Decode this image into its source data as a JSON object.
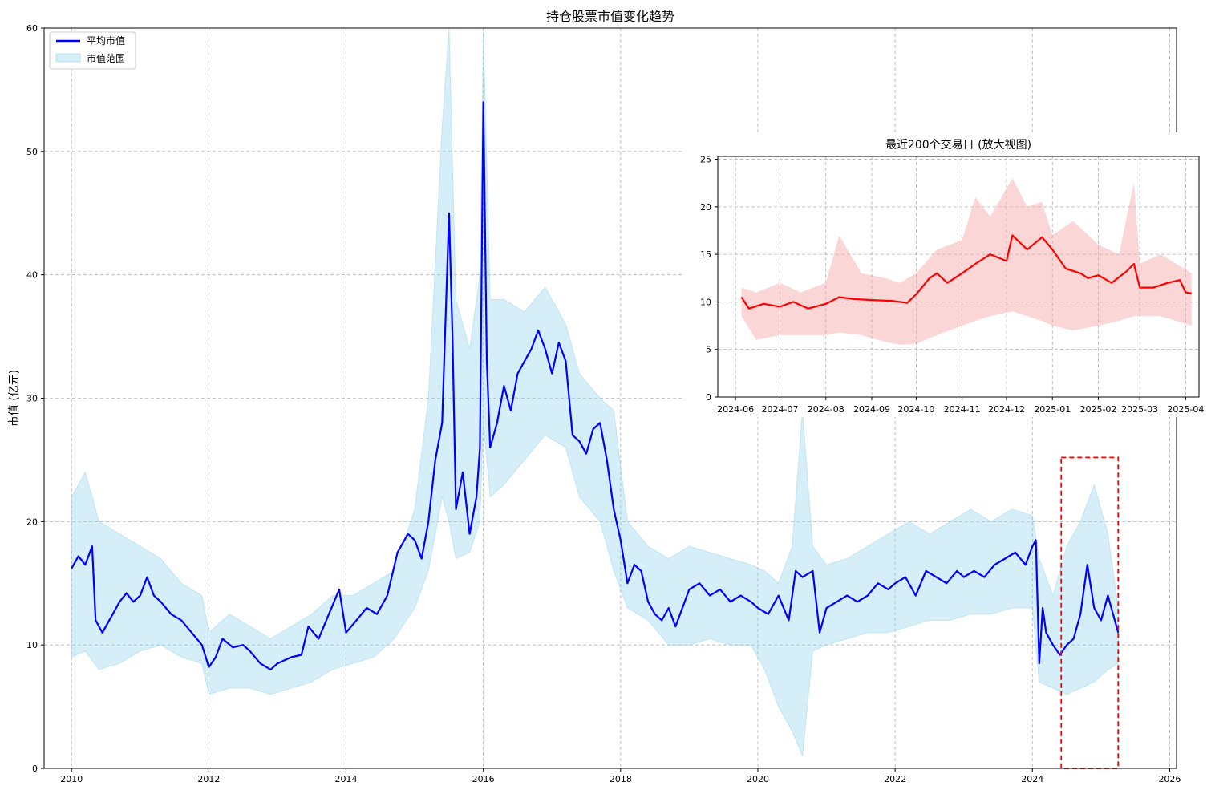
{
  "chart_data": [
    {
      "type": "line",
      "title": "持仓股票市值变化趋势",
      "ylabel": "市值 (亿元)",
      "xlabel": "",
      "xlim": [
        2009.6,
        2026.1
      ],
      "ylim": [
        0,
        60
      ],
      "xticks": [
        2010,
        2012,
        2014,
        2016,
        2018,
        2020,
        2022,
        2024,
        2026
      ],
      "xtick_labels": [
        "2010",
        "2012",
        "2014",
        "2016",
        "2018",
        "2020",
        "2022",
        "2024",
        "2026"
      ],
      "yticks": [
        0,
        10,
        20,
        30,
        40,
        50,
        60
      ],
      "ytick_labels": [
        "0",
        "10",
        "20",
        "30",
        "40",
        "50",
        "60"
      ],
      "grid": true,
      "legend": "top-left",
      "legend_entries": [
        "平均市值",
        "市值范围"
      ],
      "series": [
        {
          "name": "平均市值",
          "color": "#0000ff",
          "x": [
            2010.0,
            2010.1,
            2010.2,
            2010.3,
            2010.35,
            2010.45,
            2010.6,
            2010.7,
            2010.8,
            2010.9,
            2011.0,
            2011.1,
            2011.2,
            2011.3,
            2011.45,
            2011.6,
            2011.75,
            2011.9,
            2012.0,
            2012.1,
            2012.2,
            2012.35,
            2012.5,
            2012.6,
            2012.75,
            2012.9,
            2013.0,
            2013.2,
            2013.35,
            2013.45,
            2013.6,
            2013.75,
            2013.9,
            2014.0,
            2014.15,
            2014.3,
            2014.45,
            2014.6,
            2014.75,
            2014.9,
            2015.0,
            2015.1,
            2015.2,
            2015.3,
            2015.4,
            2015.5,
            2015.55,
            2015.6,
            2015.7,
            2015.8,
            2015.9,
            2015.95,
            2016.0,
            2016.05,
            2016.1,
            2016.2,
            2016.3,
            2016.4,
            2016.5,
            2016.6,
            2016.7,
            2016.8,
            2016.9,
            2017.0,
            2017.1,
            2017.2,
            2017.3,
            2017.4,
            2017.5,
            2017.6,
            2017.7,
            2017.8,
            2017.9,
            2018.0,
            2018.1,
            2018.2,
            2018.3,
            2018.4,
            2018.5,
            2018.6,
            2018.7,
            2018.8,
            2018.9,
            2019.0,
            2019.15,
            2019.3,
            2019.45,
            2019.6,
            2019.75,
            2019.9,
            2020.0,
            2020.15,
            2020.3,
            2020.45,
            2020.55,
            2020.65,
            2020.8,
            2020.9,
            2021.0,
            2021.15,
            2021.3,
            2021.45,
            2021.6,
            2021.75,
            2021.9,
            2022.0,
            2022.15,
            2022.3,
            2022.45,
            2022.6,
            2022.75,
            2022.9,
            2023.0,
            2023.15,
            2023.3,
            2023.45,
            2023.6,
            2023.75,
            2023.9,
            2024.0,
            2024.05,
            2024.1,
            2024.15,
            2024.2,
            2024.3,
            2024.4,
            2024.5,
            2024.6,
            2024.7,
            2024.8,
            2024.9,
            2025.0,
            2025.1,
            2025.2,
            2025.25
          ],
          "y": [
            16.2,
            17.2,
            16.5,
            18.0,
            12.0,
            11.0,
            12.5,
            13.5,
            14.2,
            13.5,
            14.0,
            15.5,
            14.0,
            13.5,
            12.5,
            12.0,
            11.0,
            10.0,
            8.2,
            9.0,
            10.5,
            9.8,
            10.0,
            9.5,
            8.5,
            8.0,
            8.5,
            9.0,
            9.2,
            11.5,
            10.5,
            12.5,
            14.5,
            11.0,
            12.0,
            13.0,
            12.5,
            14.0,
            17.5,
            19.0,
            18.5,
            17.0,
            20.0,
            25.0,
            28.0,
            45.0,
            35.0,
            21.0,
            24.0,
            19.0,
            22.0,
            26.0,
            54.0,
            33.0,
            26.0,
            28.0,
            31.0,
            29.0,
            32.0,
            33.0,
            34.0,
            35.5,
            34.0,
            32.0,
            34.5,
            33.0,
            27.0,
            26.5,
            25.5,
            27.5,
            28.0,
            25.0,
            21.0,
            18.5,
            15.0,
            16.5,
            16.0,
            13.5,
            12.5,
            12.0,
            13.0,
            11.5,
            13.0,
            14.5,
            15.0,
            14.0,
            14.5,
            13.5,
            14.0,
            13.5,
            13.0,
            12.5,
            14.0,
            12.0,
            16.0,
            15.5,
            16.0,
            11.0,
            13.0,
            13.5,
            14.0,
            13.5,
            14.0,
            15.0,
            14.5,
            15.0,
            15.5,
            14.0,
            16.0,
            15.5,
            15.0,
            16.0,
            15.5,
            16.0,
            15.5,
            16.5,
            17.0,
            17.5,
            16.5,
            18.0,
            18.5,
            8.5,
            13.0,
            11.0,
            10.0,
            9.2,
            10.0,
            10.5,
            12.5,
            16.5,
            13.0,
            12.0,
            14.0,
            12.0,
            11.0
          ]
        }
      ],
      "range_band": {
        "name": "市值范围",
        "color": "#87ceeb",
        "x": [
          2010.0,
          2010.2,
          2010.4,
          2010.7,
          2011.0,
          2011.3,
          2011.6,
          2011.9,
          2012.0,
          2012.3,
          2012.6,
          2012.9,
          2013.2,
          2013.5,
          2013.8,
          2014.1,
          2014.4,
          2014.7,
          2015.0,
          2015.2,
          2015.4,
          2015.5,
          2015.6,
          2015.8,
          2015.95,
          2016.0,
          2016.1,
          2016.3,
          2016.6,
          2016.9,
          2017.2,
          2017.4,
          2017.7,
          2017.9,
          2018.1,
          2018.4,
          2018.7,
          2019.0,
          2019.3,
          2019.6,
          2019.9,
          2020.1,
          2020.3,
          2020.5,
          2020.65,
          2020.8,
          2021.0,
          2021.3,
          2021.6,
          2021.9,
          2022.2,
          2022.5,
          2022.8,
          2023.1,
          2023.4,
          2023.7,
          2024.0,
          2024.1,
          2024.3,
          2024.5,
          2024.7,
          2024.9,
          2025.1,
          2025.25
        ],
        "upper": [
          22.0,
          24.0,
          20.0,
          19.0,
          18.0,
          17.0,
          15.0,
          14.0,
          11.0,
          12.5,
          11.5,
          10.5,
          11.5,
          12.5,
          14.0,
          14.0,
          15.0,
          16.0,
          21.0,
          30.0,
          52.0,
          60.0,
          38.0,
          34.0,
          40.0,
          60.0,
          38.0,
          38.0,
          37.0,
          39.0,
          36.0,
          32.0,
          30.0,
          29.0,
          20.0,
          18.0,
          17.0,
          18.0,
          17.5,
          17.0,
          16.5,
          16.0,
          15.0,
          18.0,
          29.0,
          18.0,
          16.5,
          17.0,
          18.0,
          19.0,
          20.0,
          19.0,
          20.0,
          21.0,
          20.0,
          21.0,
          20.5,
          17.0,
          14.0,
          18.0,
          20.0,
          23.0,
          19.0,
          13.0
        ],
        "lower": [
          9.0,
          9.5,
          8.0,
          8.5,
          9.5,
          10.0,
          9.0,
          8.5,
          6.0,
          6.5,
          6.5,
          6.0,
          6.5,
          7.0,
          8.0,
          8.5,
          9.0,
          10.5,
          13.0,
          16.0,
          22.0,
          20.0,
          17.0,
          17.5,
          20.0,
          28.0,
          22.0,
          23.0,
          25.0,
          27.0,
          26.0,
          22.0,
          20.0,
          16.0,
          13.0,
          12.0,
          10.0,
          10.0,
          10.5,
          10.0,
          10.0,
          8.0,
          5.0,
          3.0,
          1.0,
          9.5,
          10.0,
          10.5,
          11.0,
          11.0,
          11.5,
          12.0,
          12.0,
          12.5,
          12.5,
          13.0,
          13.0,
          7.0,
          6.5,
          6.0,
          6.5,
          7.0,
          8.0,
          8.5
        ]
      },
      "highlight_box": {
        "x_start": 2024.42,
        "x_end": 2025.25,
        "y_start": 0,
        "y_end": 25.2,
        "color": "#ff0000"
      }
    },
    {
      "type": "line",
      "title": "最近200个交易日 (放大视图)",
      "xlabel": "",
      "ylabel": "",
      "x_start": "2024-05-20",
      "x_end": "2025-04-10",
      "xticks": [
        "2024-06",
        "2024-07",
        "2024-08",
        "2024-09",
        "2024-10",
        "2024-11",
        "2024-12",
        "2025-01",
        "2025-02",
        "2025-03",
        "2025-04"
      ],
      "ylim": [
        0,
        25.3
      ],
      "yticks": [
        0,
        5,
        10,
        15,
        20,
        25
      ],
      "ytick_labels": [
        "0",
        "5",
        "10",
        "15",
        "20",
        "25"
      ],
      "grid": true,
      "series": [
        {
          "name": "",
          "color": "#ff0000",
          "x": [
            "2024-06-05",
            "2024-06-10",
            "2024-06-20",
            "2024-07-01",
            "2024-07-10",
            "2024-07-20",
            "2024-08-01",
            "2024-08-10",
            "2024-08-20",
            "2024-09-01",
            "2024-09-15",
            "2024-09-25",
            "2024-10-01",
            "2024-10-10",
            "2024-10-15",
            "2024-10-22",
            "2024-11-01",
            "2024-11-10",
            "2024-11-20",
            "2024-12-01",
            "2024-12-05",
            "2024-12-15",
            "2024-12-25",
            "2025-01-01",
            "2025-01-10",
            "2025-01-20",
            "2025-01-25",
            "2025-02-01",
            "2025-02-10",
            "2025-02-20",
            "2025-02-25",
            "2025-03-01",
            "2025-03-10",
            "2025-03-20",
            "2025-03-28",
            "2025-04-01",
            "2025-04-05"
          ],
          "y": [
            10.5,
            9.3,
            9.8,
            9.5,
            10.0,
            9.3,
            9.8,
            10.5,
            10.3,
            10.2,
            10.1,
            9.9,
            10.8,
            12.5,
            13.0,
            12.0,
            13.0,
            14.0,
            15.0,
            14.3,
            17.0,
            15.5,
            16.8,
            15.5,
            13.5,
            13.0,
            12.5,
            12.8,
            12.0,
            13.2,
            14.0,
            11.5,
            11.5,
            12.0,
            12.3,
            11.0,
            10.9
          ]
        }
      ],
      "range_band": {
        "color": "#f4a4a4",
        "x": [
          "2024-06-05",
          "2024-06-15",
          "2024-07-01",
          "2024-07-15",
          "2024-08-01",
          "2024-08-10",
          "2024-08-25",
          "2024-09-10",
          "2024-09-20",
          "2024-10-01",
          "2024-10-15",
          "2024-11-01",
          "2024-11-10",
          "2024-11-20",
          "2024-12-05",
          "2024-12-15",
          "2024-12-25",
          "2025-01-01",
          "2025-01-15",
          "2025-02-01",
          "2025-02-15",
          "2025-02-25",
          "2025-03-01",
          "2025-03-15",
          "2025-04-05"
        ],
        "upper": [
          11.5,
          11.0,
          12.0,
          11.0,
          12.0,
          17.0,
          13.0,
          12.5,
          12.0,
          13.0,
          15.5,
          16.5,
          21.0,
          19.0,
          23.0,
          20.0,
          20.5,
          17.0,
          18.5,
          16.0,
          15.0,
          22.5,
          14.0,
          15.0,
          13.0
        ],
        "lower": [
          8.5,
          6.0,
          6.5,
          6.5,
          6.5,
          6.8,
          6.5,
          5.8,
          5.5,
          5.6,
          6.5,
          7.5,
          8.0,
          8.5,
          9.0,
          8.5,
          8.0,
          7.5,
          7.0,
          7.5,
          8.0,
          8.5,
          8.5,
          8.5,
          7.5
        ]
      }
    }
  ]
}
